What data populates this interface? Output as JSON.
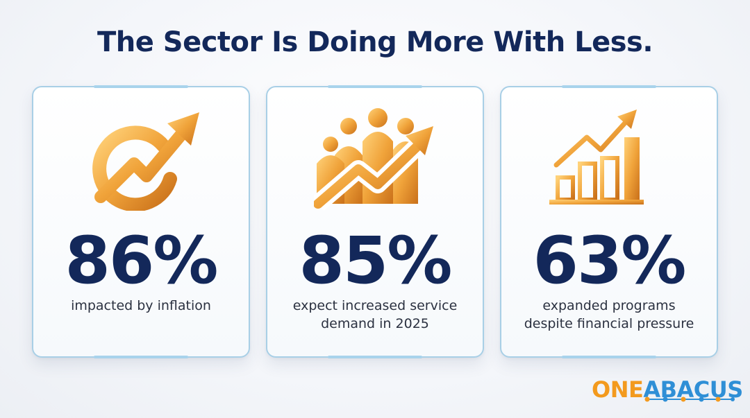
{
  "title": "The Sector Is Doing More With Less.",
  "cards": [
    {
      "icon": "dollar-up-arrow-icon",
      "value": "86%",
      "caption_lines": [
        "impacted by inflation"
      ]
    },
    {
      "icon": "people-growth-icon",
      "value": "85%",
      "caption_lines": [
        "expect increased service",
        "demand in 2025"
      ]
    },
    {
      "icon": "bar-chart-growth-icon",
      "value": "63%",
      "caption_lines": [
        "expanded programs",
        "despite financial pressure"
      ]
    }
  ],
  "brand": {
    "part1": "ONE",
    "part2": "ABACUS"
  },
  "colors": {
    "navy": "#13285a",
    "gold": "#e8971f",
    "border": "#a8cfe6",
    "brand_orange": "#f39a1e",
    "brand_blue": "#2f8fd6"
  }
}
